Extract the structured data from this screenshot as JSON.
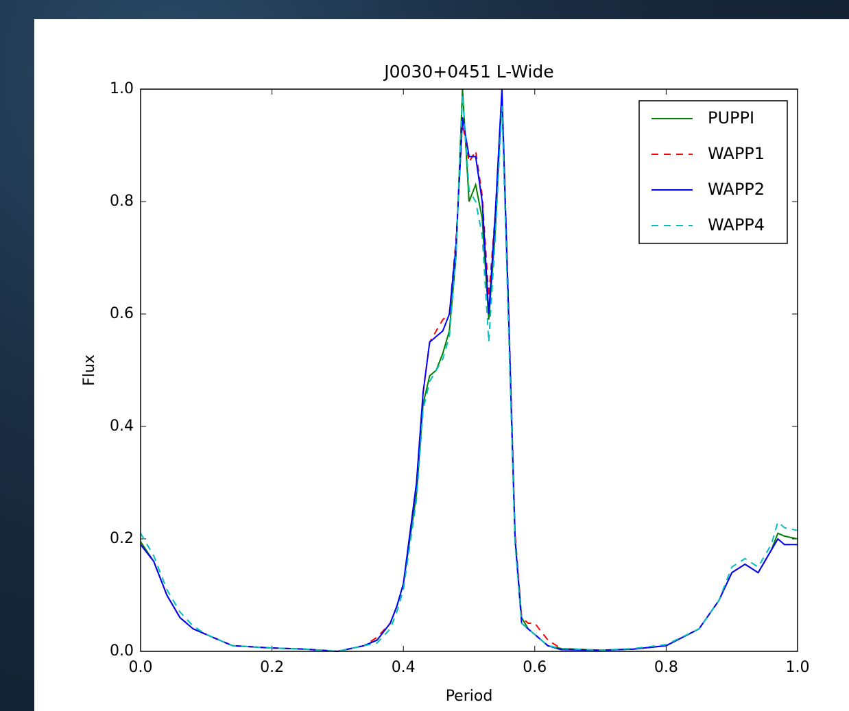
{
  "chart_data": {
    "type": "line",
    "title": "J0030+0451 L-Wide",
    "xlabel": "Period",
    "ylabel": "Flux",
    "x": [
      0,
      0.02,
      0.04,
      0.06,
      0.08,
      0.1,
      0.14,
      0.2,
      0.25,
      0.3,
      0.34,
      0.36,
      0.38,
      0.39,
      0.4,
      0.41,
      0.42,
      0.43,
      0.44,
      0.45,
      0.46,
      0.47,
      0.48,
      0.49,
      0.5,
      0.51,
      0.52,
      0.53,
      0.54,
      0.55,
      0.56,
      0.57,
      0.58,
      0.59,
      0.6,
      0.62,
      0.64,
      0.7,
      0.75,
      0.8,
      0.85,
      0.88,
      0.9,
      0.92,
      0.94,
      0.96,
      0.97,
      0.98,
      1.0
    ],
    "series": [
      {
        "name": "PUPPI",
        "color": "#008000",
        "linestyle": "solid",
        "values": [
          0.195,
          0.16,
          0.1,
          0.06,
          0.04,
          0.03,
          0.01,
          0.006,
          0.004,
          0.0,
          0.01,
          0.02,
          0.05,
          0.08,
          0.12,
          0.2,
          0.28,
          0.44,
          0.49,
          0.5,
          0.53,
          0.57,
          0.7,
          1.0,
          0.8,
          0.83,
          0.77,
          0.59,
          0.75,
          0.99,
          0.6,
          0.2,
          0.06,
          0.04,
          0.03,
          0.01,
          0.005,
          0.002,
          0.004,
          0.01,
          0.04,
          0.09,
          0.14,
          0.155,
          0.14,
          0.18,
          0.21,
          0.205,
          0.2
        ]
      },
      {
        "name": "WAPP1",
        "color": "#ff0000",
        "linestyle": "dashed",
        "values": [
          0.19,
          0.16,
          0.1,
          0.06,
          0.04,
          0.03,
          0.01,
          0.006,
          0.004,
          0.0,
          0.01,
          0.025,
          0.05,
          0.08,
          0.12,
          0.21,
          0.3,
          0.46,
          0.55,
          0.57,
          0.59,
          0.6,
          0.73,
          0.94,
          0.87,
          0.89,
          0.81,
          0.63,
          0.78,
          0.99,
          0.62,
          0.21,
          0.06,
          0.05,
          0.05,
          0.02,
          0.005,
          0.002,
          0.004,
          0.01,
          0.04,
          0.09,
          0.14,
          0.155,
          0.14,
          0.18,
          0.2,
          0.19,
          0.19
        ]
      },
      {
        "name": "WAPP2",
        "color": "#0000ff",
        "linestyle": "solid",
        "values": [
          0.19,
          0.16,
          0.1,
          0.06,
          0.04,
          0.03,
          0.01,
          0.006,
          0.004,
          0.0,
          0.01,
          0.02,
          0.05,
          0.08,
          0.12,
          0.21,
          0.3,
          0.46,
          0.55,
          0.56,
          0.57,
          0.6,
          0.72,
          0.95,
          0.88,
          0.88,
          0.8,
          0.6,
          0.78,
          1.0,
          0.61,
          0.2,
          0.05,
          0.04,
          0.03,
          0.01,
          0.003,
          0.002,
          0.004,
          0.01,
          0.04,
          0.09,
          0.14,
          0.155,
          0.14,
          0.18,
          0.2,
          0.19,
          0.19
        ]
      },
      {
        "name": "WAPP4",
        "color": "#00bfbf",
        "linestyle": "dashed",
        "values": [
          0.21,
          0.17,
          0.11,
          0.07,
          0.045,
          0.03,
          0.01,
          0.006,
          0.004,
          0.0,
          0.01,
          0.015,
          0.04,
          0.07,
          0.11,
          0.19,
          0.27,
          0.43,
          0.48,
          0.5,
          0.52,
          0.56,
          0.7,
          0.99,
          0.82,
          0.8,
          0.74,
          0.55,
          0.74,
          0.97,
          0.58,
          0.19,
          0.05,
          0.04,
          0.03,
          0.01,
          0.005,
          0.002,
          0.005,
          0.012,
          0.04,
          0.09,
          0.15,
          0.165,
          0.15,
          0.19,
          0.23,
          0.22,
          0.215
        ]
      }
    ],
    "xlim": [
      0,
      1
    ],
    "ylim": [
      0,
      1
    ],
    "xticks": [
      {
        "value": 0,
        "label": "0.0"
      },
      0.2,
      0.4,
      0.6,
      0.8,
      {
        "value": 1,
        "label": "1.0"
      }
    ],
    "yticks": [
      {
        "value": 0,
        "label": "0.0"
      },
      0.2,
      0.4,
      0.6,
      0.8,
      {
        "value": 1,
        "label": "1.0"
      }
    ],
    "grid": false,
    "legend": "upper right"
  }
}
